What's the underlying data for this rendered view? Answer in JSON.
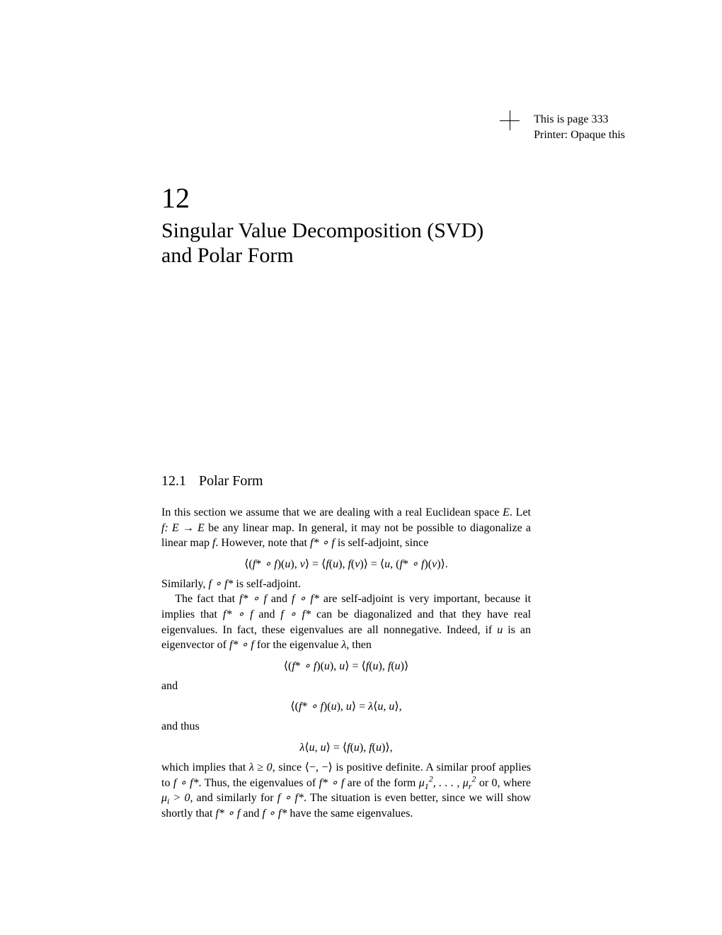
{
  "header": {
    "page_line": "This is page 333",
    "printer_line": "Printer: Opaque this"
  },
  "chapter": {
    "number": "12",
    "title_line1": "Singular Value Decomposition (SVD)",
    "title_line2": "and Polar Form"
  },
  "section": {
    "number": "12.1",
    "title": "Polar Form"
  },
  "para1_a": "In this section we assume that we are dealing with a real Euclidean space ",
  "para1_b": ". Let ",
  "para1_c": " be any linear map. In general, it may not be possible to diagonalize a linear map ",
  "para1_d": ". However, note that ",
  "para1_e": " is self-adjoint, since",
  "eq1": "⟨(f* ∘ f)(u), v⟩ = ⟨f(u), f(v)⟩ = ⟨u, (f* ∘ f)(v)⟩.",
  "para2_a": "Similarly, ",
  "para2_b": " is self-adjoint.",
  "para3_a": "The fact that ",
  "para3_b": " and ",
  "para3_c": " are self-adjoint is very important, because it implies that ",
  "para3_d": " and ",
  "para3_e": " can be diagonalized and that they have real eigenvalues. In fact, these eigenvalues are all nonnegative. Indeed, if ",
  "para3_f": " is an eigenvector of ",
  "para3_g": " for the eigenvalue ",
  "para3_h": ", then",
  "eq2": "⟨(f* ∘ f)(u), u⟩ = ⟨f(u), f(u)⟩",
  "word_and": "and",
  "eq3": "⟨(f* ∘ f)(u), u⟩ = λ⟨u, u⟩,",
  "word_andthus": "and thus",
  "eq4": "λ⟨u, u⟩ = ⟨f(u), f(u)⟩,",
  "para4_a": "which implies that ",
  "para4_b": ", since ",
  "para4_c": " is positive definite. A similar proof applies to ",
  "para4_d": ". Thus, the eigenvalues of ",
  "para4_e": " are of the form ",
  "para4_f": " or 0, where ",
  "para4_g": ", and similarly for ",
  "para4_h": ". The situation is even better, since we will show shortly that ",
  "para4_i": " and ",
  "para4_j": " have the same eigenvalues.",
  "math": {
    "E": "E",
    "fEE": "f: E → E",
    "f": "f",
    "fstar_f": "f* ∘ f",
    "f_fstar": "f ∘ f*",
    "u": "u",
    "lambda": "λ",
    "lambda_geq": "λ ≥ 0",
    "innerblank": "⟨−, −⟩",
    "mu_i_gt": "μᵢ > 0",
    "mu_list": "μ₁², . . . , μᵣ²"
  },
  "colors": {
    "text": "#000000",
    "bg": "#ffffff"
  },
  "typography": {
    "body_fontsize_pt": 16,
    "chapter_num_fontsize_pt": 40,
    "chapter_title_fontsize_pt": 30,
    "section_fontsize_pt": 20
  }
}
